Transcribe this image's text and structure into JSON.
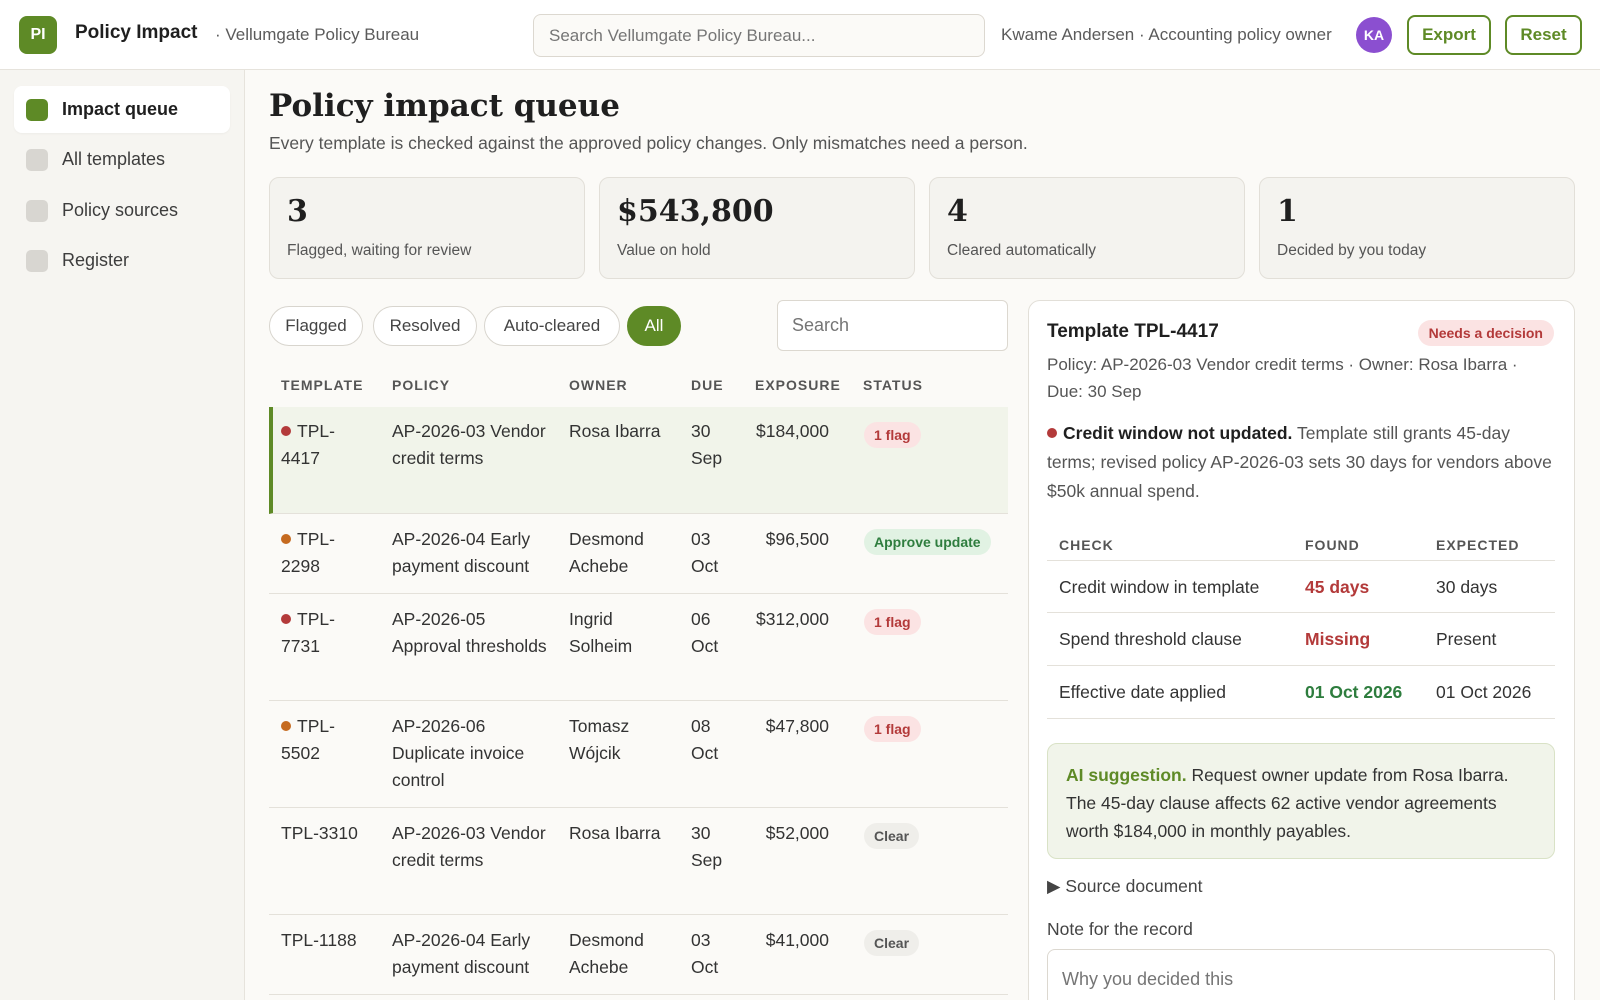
{
  "header": {
    "logo": "PI",
    "app_name": "Policy Impact",
    "org": "· Vellumgate Policy Bureau",
    "search_placeholder": "Search Vellumgate Policy Bureau...",
    "user": "Kwame Andersen · Accounting policy owner",
    "avatar": "KA",
    "export_label": "Export",
    "reset_label": "Reset"
  },
  "sidebar": {
    "items": [
      {
        "label": "Impact queue",
        "active": true
      },
      {
        "label": "All templates",
        "active": false
      },
      {
        "label": "Policy sources",
        "active": false
      },
      {
        "label": "Register",
        "active": false
      }
    ]
  },
  "main": {
    "title": "Policy impact queue",
    "subtitle": "Every template is checked against the approved policy changes. Only mismatches need a person.",
    "stats": [
      {
        "value": "3",
        "label": "Flagged, waiting for review"
      },
      {
        "value": "$543,800",
        "label": "Value on hold"
      },
      {
        "value": "4",
        "label": "Cleared automatically"
      },
      {
        "value": "1",
        "label": "Decided by you today"
      }
    ],
    "filters": [
      "Flagged",
      "Resolved",
      "Auto-cleared",
      "All"
    ],
    "active_filter": "All",
    "search_placeholder": "Search",
    "columns": [
      "TEMPLATE",
      "POLICY",
      "OWNER",
      "DUE",
      "EXPOSURE",
      "STATUS"
    ],
    "rows": [
      {
        "tpl": "TPL-4417",
        "dot": "red",
        "policy": "AP-2026-03 Vendor credit terms",
        "owner": "Rosa Ibarra",
        "due": "30 Sep",
        "exposure": "$184,000",
        "status": "1 flag",
        "status_kind": "flag"
      },
      {
        "tpl": "TPL-2298",
        "dot": "orange",
        "policy": "AP-2026-04 Early payment discount",
        "owner": "Desmond Achebe",
        "due": "03 Oct",
        "exposure": "$96,500",
        "status": "Approve update",
        "status_kind": "approve"
      },
      {
        "tpl": "TPL-7731",
        "dot": "red",
        "policy": "AP-2026-05 Approval thresholds",
        "owner": "Ingrid Solheim",
        "due": "06 Oct",
        "exposure": "$312,000",
        "status": "1 flag",
        "status_kind": "flag"
      },
      {
        "tpl": "TPL-5502",
        "dot": "orange",
        "policy": "AP-2026-06 Duplicate invoice control",
        "owner": "Tomasz Wójcik",
        "due": "08 Oct",
        "exposure": "$47,800",
        "status": "1 flag",
        "status_kind": "flag"
      },
      {
        "tpl": "TPL-3310",
        "dot": "",
        "policy": "AP-2026-03 Vendor credit terms",
        "owner": "Rosa Ibarra",
        "due": "30 Sep",
        "exposure": "$52,000",
        "status": "Clear",
        "status_kind": "clear"
      },
      {
        "tpl": "TPL-1188",
        "dot": "",
        "policy": "AP-2026-04 Early payment discount",
        "owner": "Desmond Achebe",
        "due": "03 Oct",
        "exposure": "$41,000",
        "status": "Clear",
        "status_kind": "clear"
      }
    ]
  },
  "detail": {
    "title": "Template TPL-4417",
    "badge": "Needs a decision",
    "meta": "Policy: AP-2026-03 Vendor credit terms · Owner: Rosa Ibarra · Due: 30 Sep",
    "issue_title": "Credit window not updated.",
    "issue_text": "Template still grants 45-day terms; revised policy AP-2026-03 sets 30 days for vendors above $50k annual spend.",
    "check_columns": [
      "CHECK",
      "FOUND",
      "EXPECTED"
    ],
    "checks": [
      {
        "check": "Credit window in template",
        "found": "45 days",
        "expected": "30 days",
        "ok": false
      },
      {
        "check": "Spend threshold clause",
        "found": "Missing",
        "expected": "Present",
        "ok": false
      },
      {
        "check": "Effective date applied",
        "found": "01 Oct 2026",
        "expected": "01 Oct 2026",
        "ok": true
      }
    ],
    "ai_label": "AI suggestion.",
    "ai_text": "Request owner update from Rosa Ibarra. The 45-day clause affects 62 active vendor agreements worth $184,000 in monthly payables.",
    "source_label": "▶  Source document",
    "note_label": "Note for the record",
    "note_placeholder": "Why you decided this"
  }
}
